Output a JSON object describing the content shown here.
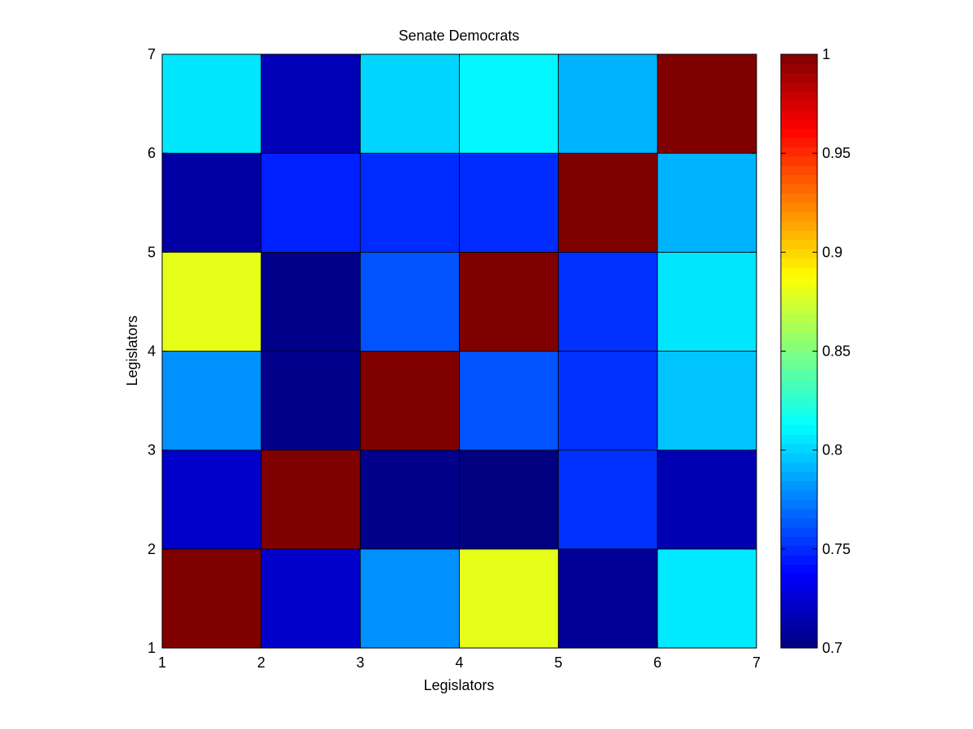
{
  "chart_data": {
    "type": "heatmap",
    "title": "Senate Democrats",
    "xlabel": "Legislators",
    "ylabel": "Legislators",
    "x_ticks": [
      "1",
      "2",
      "3",
      "4",
      "5",
      "6",
      "7"
    ],
    "y_ticks": [
      "1",
      "2",
      "3",
      "4",
      "5",
      "6",
      "7"
    ],
    "xlim": [
      1,
      7
    ],
    "ylim": [
      1,
      7
    ],
    "rows_bottom_to_top": [
      [
        1.0,
        0.722,
        0.78,
        0.88,
        0.707,
        0.806
      ],
      [
        0.722,
        1.0,
        0.703,
        0.7,
        0.752,
        0.715
      ],
      [
        0.78,
        0.703,
        1.0,
        0.762,
        0.752,
        0.795
      ],
      [
        0.88,
        0.703,
        0.762,
        1.0,
        0.752,
        0.805
      ],
      [
        0.711,
        0.747,
        0.75,
        0.75,
        1.0,
        0.79
      ],
      [
        0.805,
        0.716,
        0.8,
        0.81,
        0.79,
        1.0
      ]
    ],
    "colorbar": {
      "colormap": "jet",
      "range": [
        0.7,
        1.0
      ],
      "tick_labels": [
        "0.7",
        "0.75",
        "0.8",
        "0.85",
        "0.9",
        "0.95",
        "1"
      ],
      "tick_values": [
        0.7,
        0.75,
        0.8,
        0.85,
        0.9,
        0.95,
        1.0
      ]
    }
  }
}
